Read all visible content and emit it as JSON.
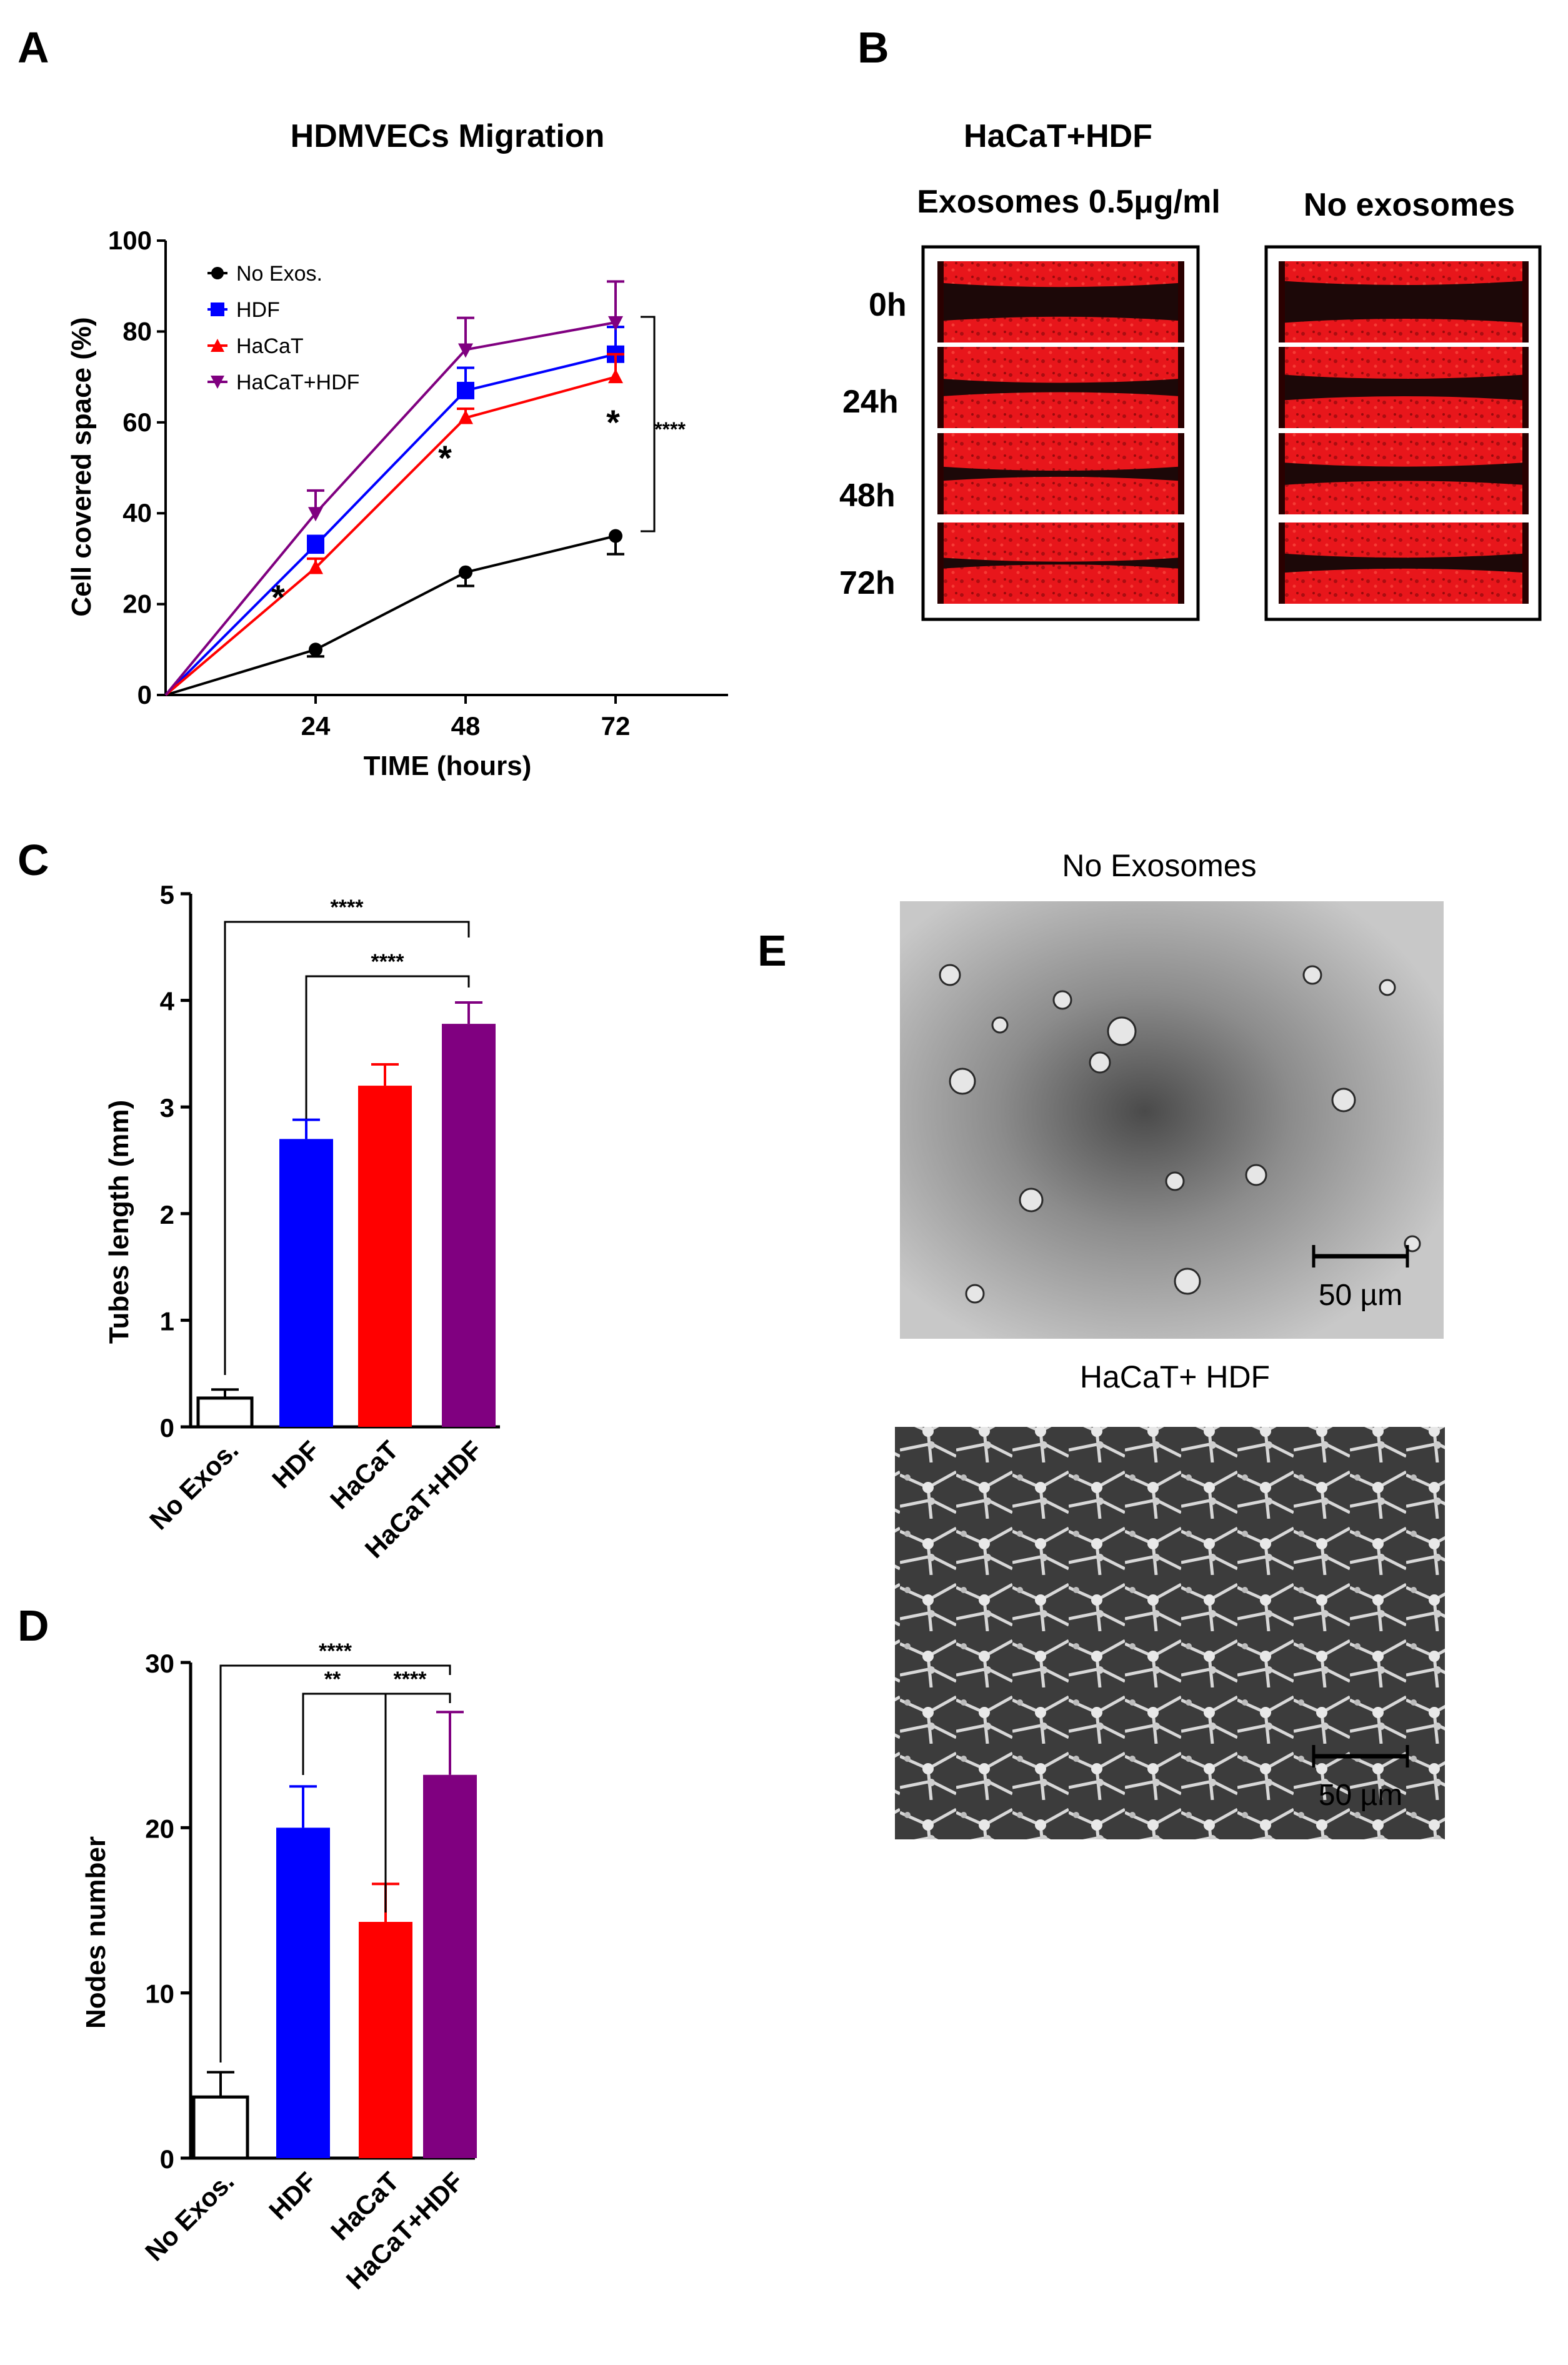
{
  "panels": {
    "A": {
      "letter": "A"
    },
    "B": {
      "letter": "B"
    },
    "C": {
      "letter": "C"
    },
    "D": {
      "letter": "D"
    },
    "E": {
      "letter": "E"
    }
  },
  "colors": {
    "no_exos": "#000000",
    "hdf": "#0000ff",
    "hacat": "#ff0000",
    "hacat_hdf": "#800080",
    "wound_red": "#e8161b",
    "wound_dark": "#1c0808"
  },
  "chart_data": [
    {
      "id": "A",
      "type": "line",
      "title": "HDMVECs Migration",
      "xlabel": "TIME (hours)",
      "ylabel": "Cell covered space (%)",
      "x": [
        0,
        24,
        48,
        72
      ],
      "xticks": [
        "24",
        "48",
        "72"
      ],
      "yticks": [
        "0",
        "20",
        "40",
        "60",
        "80",
        "100"
      ],
      "ylim": [
        0,
        100
      ],
      "series": [
        {
          "name": "No Exos.",
          "marker": "circle",
          "values": [
            0,
            10,
            27,
            35
          ],
          "errors": [
            0,
            1.5,
            3,
            4
          ]
        },
        {
          "name": "HDF",
          "marker": "square",
          "values": [
            0,
            33,
            67,
            75
          ],
          "errors": [
            0,
            2,
            5,
            6
          ]
        },
        {
          "name": "HaCaT",
          "marker": "triangle-up",
          "values": [
            0,
            28,
            61,
            70
          ],
          "errors": [
            0,
            2,
            2,
            5
          ]
        },
        {
          "name": "HaCaT+HDF",
          "marker": "triangle-down",
          "values": [
            0,
            40,
            76,
            82
          ],
          "errors": [
            0,
            5,
            7,
            9
          ]
        }
      ],
      "annotations": {
        "star_labels": [
          "*",
          "*",
          "*"
        ],
        "bracket_label": "****"
      }
    },
    {
      "id": "C",
      "type": "bar",
      "ylabel": "Tubes length (mm)",
      "categories": [
        "No Exos.",
        "HDF",
        "HaCaT",
        "HaCaT+HDF"
      ],
      "values": [
        0.27,
        2.7,
        3.2,
        3.78
      ],
      "errors": [
        0.08,
        0.18,
        0.2,
        0.2
      ],
      "ylim": [
        0,
        5
      ],
      "yticks": [
        "0",
        "1",
        "2",
        "3",
        "4",
        "5"
      ],
      "significance": [
        "****",
        "****"
      ]
    },
    {
      "id": "D",
      "type": "bar",
      "ylabel": "Nodes number",
      "categories": [
        "No Exos.",
        "HDF",
        "HaCaT",
        "HaCaT+HDF"
      ],
      "values": [
        3.7,
        20,
        14.3,
        23.2
      ],
      "errors": [
        1.5,
        2.5,
        2.3,
        3.8
      ],
      "ylim": [
        0,
        30
      ],
      "yticks": [
        "0",
        "10",
        "20",
        "30"
      ],
      "significance": [
        "****",
        "**",
        "****"
      ]
    }
  ],
  "panel_b": {
    "title": "HaCaT+HDF",
    "col1": "Exosomes 0.5μg/ml",
    "col2": "No exosomes",
    "times": [
      "0h",
      "24h",
      "48h",
      "72h"
    ],
    "gap_widths": {
      "exosomes": [
        0.35,
        0.1,
        0.06,
        0.02
      ],
      "no_exosomes": [
        0.4,
        0.2,
        0.16,
        0.12
      ]
    }
  },
  "panel_e": {
    "top_label": "No Exosomes",
    "bottom_label": "HaCaT+ HDF",
    "scale_bar": "50 µm"
  }
}
